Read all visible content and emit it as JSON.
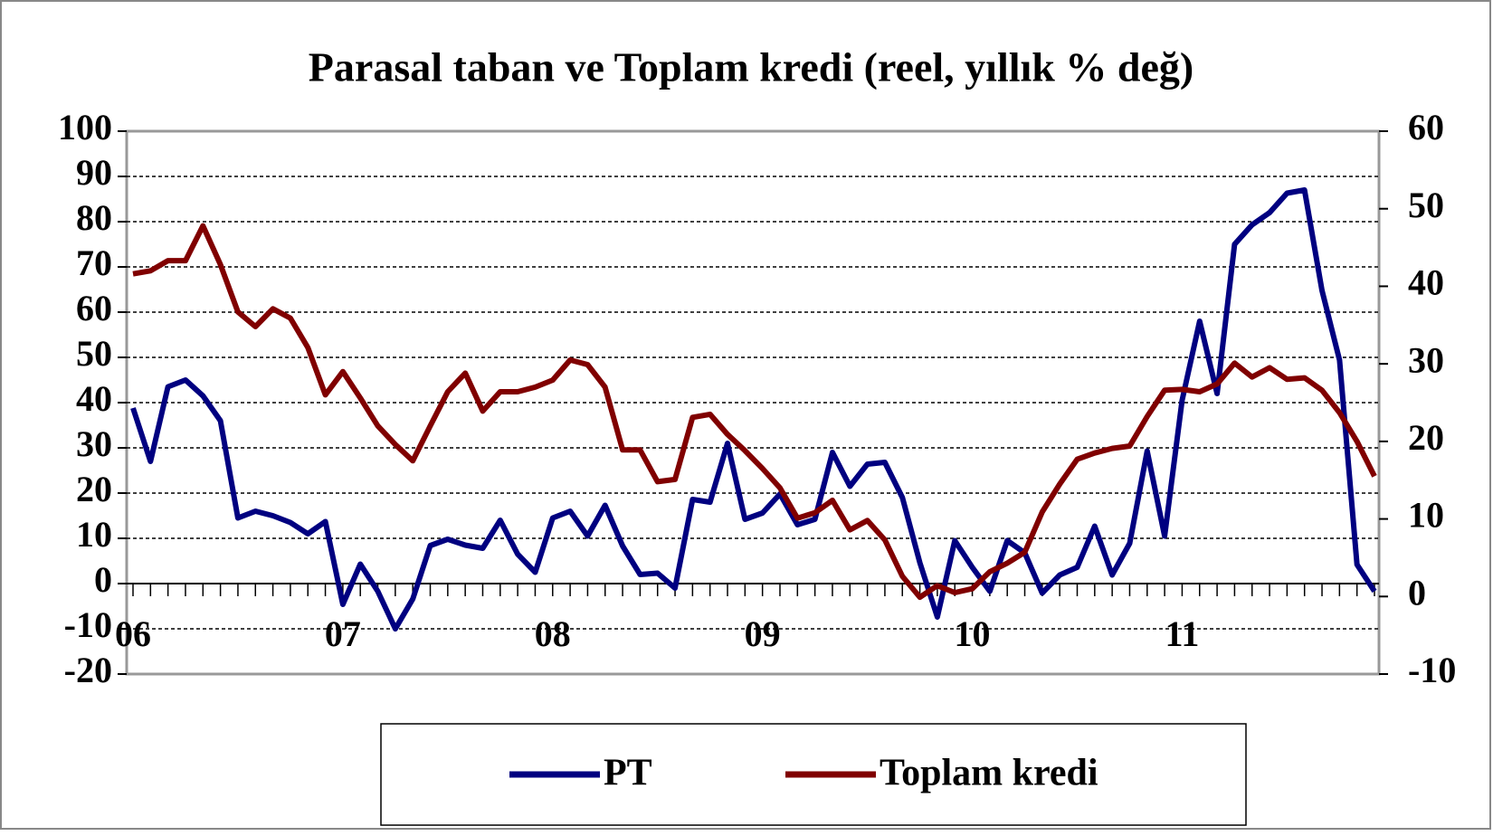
{
  "chart_data": {
    "type": "line",
    "title": "Parasal taban ve Toplam kredi (reel, yıllık % değ)",
    "categories": [
      "06",
      null,
      null,
      null,
      null,
      null,
      null,
      null,
      null,
      null,
      null,
      null,
      "07",
      null,
      null,
      null,
      null,
      null,
      null,
      null,
      null,
      null,
      null,
      null,
      "08",
      null,
      null,
      null,
      null,
      null,
      null,
      null,
      null,
      null,
      null,
      null,
      "09",
      null,
      null,
      null,
      null,
      null,
      null,
      null,
      null,
      null,
      null,
      null,
      "10",
      null,
      null,
      null,
      null,
      null,
      null,
      null,
      null,
      null,
      null,
      null,
      "11",
      null,
      null,
      null,
      null,
      null,
      null,
      null,
      null,
      null,
      null,
      null
    ],
    "series": [
      {
        "name": "PT",
        "color": "#000080",
        "values": [
          38.8,
          27,
          43.5,
          45,
          41.5,
          36,
          14.5,
          16,
          15,
          13.5,
          11,
          13.7,
          -4.6,
          4.3,
          -1.7,
          -10,
          -3.4,
          8.4,
          9.8,
          8.5,
          7.8,
          14,
          6.5,
          2.5,
          14.5,
          16,
          10.5,
          17.3,
          8.3,
          2,
          2.3,
          -1,
          18.6,
          18,
          31,
          14.2,
          15.6,
          19.8,
          13,
          14.2,
          29,
          21.5,
          26.4,
          26.8,
          19,
          4.6,
          -7.4,
          9.5,
          3.6,
          -1.7,
          9.5,
          6.8,
          -2.1,
          1.9,
          3.6,
          12.7,
          1.9,
          8.9,
          29.3,
          10.5,
          40.5,
          58,
          42,
          75,
          79.3,
          82,
          86.3,
          87,
          64.8,
          49.4,
          4.2,
          -1.7
        ]
      },
      {
        "name": "Toplam kredi",
        "color": "#800000",
        "axis": "y2",
        "values": [
          41.6,
          42,
          43.3,
          43.3,
          47.8,
          42.8,
          36.7,
          34.8,
          37.1,
          35.9,
          32.1,
          26,
          29,
          25.6,
          22,
          19.6,
          17.5,
          22,
          26.4,
          28.8,
          23.9,
          26.4,
          26.4,
          27,
          27.9,
          30.5,
          29.9,
          27,
          18.9,
          18.9,
          14.8,
          15.1,
          23.1,
          23.5,
          20.9,
          18.8,
          16.5,
          14,
          10.1,
          10.8,
          12.4,
          8.6,
          9.8,
          7.3,
          2.6,
          -0.1,
          1.4,
          0.5,
          1,
          3.2,
          4.3,
          5.7,
          10.9,
          14.5,
          17.7,
          18.5,
          19.1,
          19.4,
          23.2,
          26.6,
          26.7,
          26.4,
          27.4,
          30.1,
          28.3,
          29.5,
          28,
          28.2,
          26.6,
          23.7,
          20,
          15.5
        ]
      }
    ],
    "ylim": [
      -20,
      100
    ],
    "yticks": [
      -20,
      -10,
      0,
      10,
      20,
      30,
      40,
      50,
      60,
      70,
      80,
      90,
      100
    ],
    "y2lim": [
      -10,
      60
    ],
    "y2ticks": [
      -10,
      0,
      10,
      20,
      30,
      40,
      50,
      60
    ],
    "grid": true,
    "legend": "bottom"
  }
}
